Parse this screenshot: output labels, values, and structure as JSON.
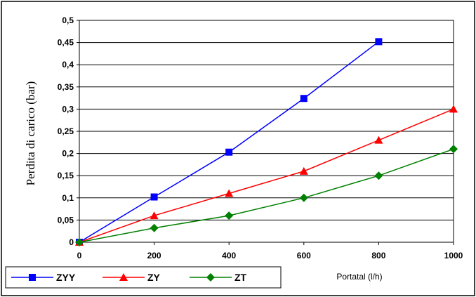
{
  "chart_data": {
    "type": "line",
    "title": "",
    "xlabel": "Portatal (l/h)",
    "ylabel": "Perdita di carico (bar)",
    "xlim": [
      0,
      1000
    ],
    "ylim": [
      0,
      0.5
    ],
    "x_ticks": [
      0,
      200,
      400,
      600,
      800,
      1000
    ],
    "x_tick_labels": [
      "0",
      "200",
      "400",
      "600",
      "800",
      "1000"
    ],
    "y_ticks": [
      0,
      0.05,
      0.1,
      0.15,
      0.2,
      0.25,
      0.3,
      0.35,
      0.4,
      0.45,
      0.5
    ],
    "y_tick_labels": [
      "0",
      "0,05",
      "0,1",
      "0,15",
      "0,2",
      "0,25",
      "0,3",
      "0,35",
      "0,4",
      "0,45",
      "0,5"
    ],
    "grid": "horizontal",
    "legend_position": "bottom-left",
    "series": [
      {
        "name": "ZYY",
        "color": "#0000ff",
        "marker": "square",
        "x": [
          0,
          200,
          400,
          600,
          800
        ],
        "y": [
          0,
          0.102,
          0.203,
          0.324,
          0.452
        ]
      },
      {
        "name": "ZY",
        "color": "#ff0000",
        "marker": "triangle",
        "x": [
          0,
          200,
          400,
          600,
          800,
          1000
        ],
        "y": [
          0,
          0.06,
          0.11,
          0.16,
          0.23,
          0.3
        ]
      },
      {
        "name": "ZT",
        "color": "#008000",
        "marker": "diamond",
        "x": [
          0,
          200,
          400,
          600,
          800,
          1000
        ],
        "y": [
          0,
          0.032,
          0.06,
          0.1,
          0.15,
          0.21
        ]
      }
    ]
  }
}
